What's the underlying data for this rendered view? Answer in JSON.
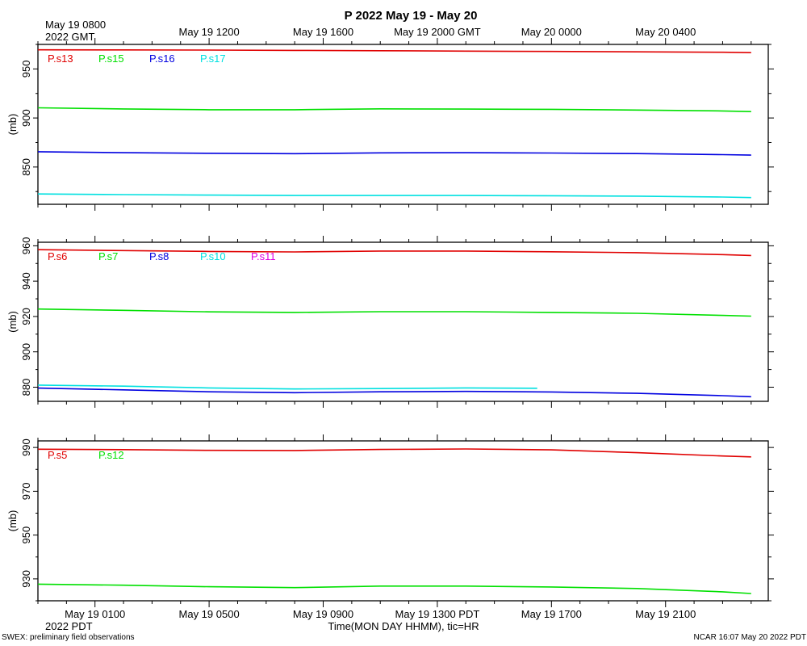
{
  "title": "P 2022 May 19 - May 20",
  "top_axis": {
    "first_label_line1": "May 19 0800",
    "first_label_line2": "2022 GMT",
    "labels": [
      "May 19 1200",
      "May 19 1600",
      "May 19 2000 GMT",
      "May 20 0000",
      "May 20 0400"
    ]
  },
  "bottom_axis": {
    "labels": [
      "May 19 0100",
      "May 19 0500",
      "May 19 0900",
      "May 19 1300 PDT",
      "May 19 1700",
      "May 19 2100"
    ],
    "sublabel": "2022 PDT",
    "xlabel": "Time(MON DAY HHMM), tic=HR"
  },
  "footer": {
    "left": "SWEX: preliminary field observations",
    "right": "NCAR 16:07 May 20 2022 PDT"
  },
  "chart_data": [
    {
      "type": "line",
      "ylabel": "(mb)",
      "ylim": [
        812,
        975
      ],
      "yticks": [
        850,
        900,
        950
      ],
      "xlim": [
        23,
        48.6
      ],
      "x_units": "hours since May 19 0000 PDT",
      "series": [
        {
          "name": "P.s13",
          "color": "#e00000",
          "x": [
            23,
            26,
            29,
            32,
            35,
            38,
            41,
            44,
            47,
            48
          ],
          "y": [
            969.5,
            969.4,
            969.2,
            968.9,
            968.6,
            968.2,
            967.8,
            967.4,
            967.0,
            966.6
          ]
        },
        {
          "name": "P.s15",
          "color": "#00e000",
          "x": [
            23,
            26,
            29,
            32,
            35,
            38,
            41,
            44,
            47,
            48
          ],
          "y": [
            910.4,
            909.2,
            908.4,
            908.4,
            909.3,
            909.1,
            908.8,
            908.1,
            907.2,
            906.5
          ]
        },
        {
          "name": "P.s16",
          "color": "#0000e0",
          "x": [
            23,
            26,
            29,
            32,
            35,
            38,
            41,
            44,
            47,
            48
          ],
          "y": [
            865.6,
            864.6,
            864.0,
            863.6,
            864.4,
            864.6,
            864.3,
            863.7,
            862.6,
            862.1
          ]
        },
        {
          "name": "P.s17",
          "color": "#00e0e0",
          "x": [
            23,
            26,
            29,
            32,
            35,
            38,
            41,
            44,
            47,
            48
          ],
          "y": [
            822.5,
            821.9,
            821.4,
            821.0,
            821.0,
            821.0,
            820.7,
            820.3,
            819.4,
            818.8
          ]
        }
      ]
    },
    {
      "type": "line",
      "ylabel": "(mb)",
      "ylim": [
        872,
        962
      ],
      "yticks": [
        880,
        900,
        920,
        940,
        960
      ],
      "xlim": [
        23,
        48.6
      ],
      "x_units": "hours since May 19 0000 PDT",
      "series": [
        {
          "name": "P.s6",
          "color": "#e00000",
          "x": [
            23,
            26,
            29,
            32,
            35,
            38,
            41,
            44,
            47,
            48
          ],
          "y": [
            957.8,
            957.3,
            956.8,
            956.5,
            957.0,
            957.0,
            956.6,
            956.1,
            955.0,
            954.5
          ]
        },
        {
          "name": "P.s7",
          "color": "#00e000",
          "x": [
            23,
            26,
            29,
            32,
            35,
            38,
            41,
            44,
            47,
            48
          ],
          "y": [
            924.2,
            923.5,
            922.6,
            922.3,
            922.7,
            922.7,
            922.3,
            921.8,
            920.6,
            920.2
          ]
        },
        {
          "name": "P.s8",
          "color": "#0000e0",
          "x": [
            23,
            26,
            29,
            32,
            35,
            38,
            41,
            44,
            47,
            48
          ],
          "y": [
            879.5,
            878.5,
            877.4,
            876.9,
            877.4,
            877.6,
            877.3,
            876.5,
            875.2,
            874.6
          ]
        },
        {
          "name": "P.s10",
          "color": "#00e0e0",
          "x": [
            23,
            26,
            29,
            32,
            35,
            38,
            40.5
          ],
          "y": [
            881.2,
            880.6,
            879.6,
            879.0,
            879.2,
            879.6,
            879.4
          ]
        },
        {
          "name": "P.s11",
          "color": "#e000e0",
          "x": [],
          "y": []
        }
      ]
    },
    {
      "type": "line",
      "ylabel": "(mb)",
      "ylim": [
        920,
        993
      ],
      "yticks": [
        930,
        950,
        970,
        990
      ],
      "xlim": [
        23,
        48.6
      ],
      "x_units": "hours since May 19 0000 PDT",
      "series": [
        {
          "name": "P.s5",
          "color": "#e00000",
          "x": [
            23,
            26,
            29,
            32,
            35,
            38,
            41,
            44,
            47,
            48
          ],
          "y": [
            989.2,
            989.0,
            988.7,
            988.6,
            989.1,
            989.3,
            988.9,
            987.6,
            986.1,
            985.7
          ]
        },
        {
          "name": "P.s12",
          "color": "#00e000",
          "x": [
            23,
            26,
            29,
            32,
            35,
            38,
            41,
            44,
            47,
            48
          ],
          "y": [
            927.6,
            927.1,
            926.4,
            926.0,
            926.7,
            926.7,
            926.3,
            925.6,
            924.1,
            923.3
          ]
        }
      ]
    }
  ]
}
